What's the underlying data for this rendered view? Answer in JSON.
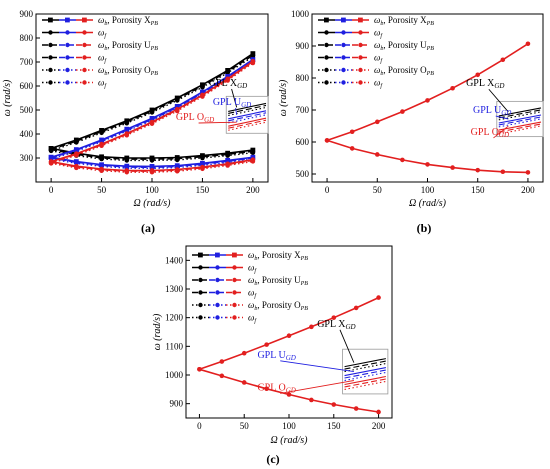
{
  "colors": {
    "black": "#000000",
    "blue": "#1f1fe0",
    "red": "#e21f1f",
    "gray": "#9a9a9a"
  },
  "chart_data": [
    {
      "panel_label": "(a)",
      "type": "line",
      "xlabel": "Ω (rad/s)",
      "ylabel": "ω (rad/s)",
      "xlim": [
        -15,
        215
      ],
      "ylim": [
        200,
        900
      ],
      "xticks": [
        0,
        50,
        100,
        150,
        200
      ],
      "yticks": [
        300,
        400,
        500,
        600,
        700,
        800,
        900
      ],
      "grid": false,
      "legend_position": "top-left",
      "legend": [
        {
          "sym": "ω",
          "sub": "b",
          "rest": ", Porosity X",
          "rsub": "PB",
          "style": "solid"
        },
        {
          "sym": "ω",
          "sub": "f",
          "rest": "",
          "rsub": "",
          "style": "solid"
        },
        {
          "sym": "ω",
          "sub": "b",
          "rest": ", Porosity U",
          "rsub": "PB",
          "style": "dash"
        },
        {
          "sym": "ω",
          "sub": "f",
          "rest": "",
          "rsub": "",
          "style": "dash"
        },
        {
          "sym": "ω",
          "sub": "b",
          "rest": ", Porosity O",
          "rsub": "PB",
          "style": "dot"
        },
        {
          "sym": "ω",
          "sub": "f",
          "rest": "",
          "rsub": "",
          "style": "dot"
        }
      ],
      "annotations": [
        {
          "text": "GPL X",
          "sub": "GD",
          "color": "black"
        },
        {
          "text": "GPL U",
          "sub": "GD",
          "color": "blue"
        },
        {
          "text": "GPL O",
          "sub": "GD",
          "color": "red"
        }
      ],
      "x": [
        0,
        25,
        50,
        75,
        100,
        125,
        150,
        175,
        200
      ],
      "series": [
        {
          "group": "X",
          "color": "black",
          "style": "solid",
          "values": [
            340,
            375,
            415,
            455,
            500,
            550,
            605,
            665,
            735
          ]
        },
        {
          "group": "X",
          "color": "black",
          "style": "solid",
          "values": [
            340,
            320,
            305,
            300,
            300,
            302,
            310,
            320,
            333
          ]
        },
        {
          "group": "X",
          "color": "black",
          "style": "dash",
          "values": [
            335,
            370,
            410,
            450,
            495,
            545,
            600,
            660,
            728
          ]
        },
        {
          "group": "X",
          "color": "black",
          "style": "dash",
          "values": [
            335,
            315,
            300,
            295,
            295,
            297,
            305,
            315,
            328
          ]
        },
        {
          "group": "X",
          "color": "black",
          "style": "dot",
          "values": [
            330,
            365,
            405,
            445,
            490,
            540,
            595,
            655,
            722
          ]
        },
        {
          "group": "X",
          "color": "black",
          "style": "dot",
          "values": [
            330,
            310,
            296,
            290,
            290,
            292,
            300,
            310,
            322
          ]
        },
        {
          "group": "U",
          "color": "blue",
          "style": "solid",
          "values": [
            303,
            335,
            375,
            420,
            465,
            515,
            575,
            640,
            710
          ]
        },
        {
          "group": "U",
          "color": "blue",
          "style": "solid",
          "values": [
            303,
            285,
            272,
            266,
            265,
            268,
            278,
            290,
            303
          ]
        },
        {
          "group": "U",
          "color": "blue",
          "style": "dash",
          "values": [
            300,
            332,
            372,
            416,
            461,
            511,
            571,
            636,
            706
          ]
        },
        {
          "group": "U",
          "color": "blue",
          "style": "dash",
          "values": [
            300,
            282,
            269,
            262,
            261,
            264,
            274,
            286,
            300
          ]
        },
        {
          "group": "U",
          "color": "blue",
          "style": "dot",
          "values": [
            296,
            328,
            368,
            412,
            457,
            507,
            567,
            632,
            702
          ]
        },
        {
          "group": "U",
          "color": "blue",
          "style": "dot",
          "values": [
            296,
            278,
            265,
            258,
            257,
            260,
            270,
            282,
            296
          ]
        },
        {
          "group": "O",
          "color": "red",
          "style": "solid",
          "values": [
            285,
            318,
            358,
            402,
            450,
            503,
            563,
            630,
            703
          ]
        },
        {
          "group": "O",
          "color": "red",
          "style": "solid",
          "values": [
            285,
            266,
            254,
            248,
            248,
            252,
            262,
            276,
            293
          ]
        },
        {
          "group": "O",
          "color": "red",
          "style": "dash",
          "values": [
            282,
            315,
            355,
            399,
            447,
            500,
            560,
            627,
            700
          ]
        },
        {
          "group": "O",
          "color": "red",
          "style": "dash",
          "values": [
            282,
            263,
            251,
            245,
            245,
            249,
            259,
            273,
            290
          ]
        },
        {
          "group": "O",
          "color": "red",
          "style": "dot",
          "values": [
            278,
            311,
            351,
            395,
            443,
            496,
            556,
            623,
            696
          ]
        },
        {
          "group": "O",
          "color": "red",
          "style": "dot",
          "values": [
            278,
            259,
            247,
            241,
            241,
            245,
            255,
            269,
            286
          ]
        }
      ]
    },
    {
      "panel_label": "(b)",
      "type": "line",
      "xlabel": "Ω (rad/s)",
      "ylabel": "ω (rad/s)",
      "xlim": [
        -15,
        215
      ],
      "ylim": [
        475,
        1000
      ],
      "xticks": [
        0,
        50,
        100,
        150,
        200
      ],
      "yticks": [
        500,
        600,
        700,
        800,
        900,
        1000
      ],
      "grid": false,
      "legend_position": "top-left",
      "legend": [
        {
          "sym": "ω",
          "sub": "b",
          "rest": ", Porosity X",
          "rsub": "PB",
          "style": "solid"
        },
        {
          "sym": "ω",
          "sub": "f",
          "rest": "",
          "rsub": "",
          "style": "solid"
        },
        {
          "sym": "ω",
          "sub": "b",
          "rest": ", Porosity U",
          "rsub": "PB",
          "style": "dash"
        },
        {
          "sym": "ω",
          "sub": "f",
          "rest": "",
          "rsub": "",
          "style": "dash"
        },
        {
          "sym": "ω",
          "sub": "b",
          "rest": ", Porosity O",
          "rsub": "PB",
          "style": "dot"
        },
        {
          "sym": "ω",
          "sub": "f",
          "rest": "",
          "rsub": "",
          "style": "dot"
        }
      ],
      "annotations": [
        {
          "text": "GPL X",
          "sub": "GD",
          "color": "black"
        },
        {
          "text": "GPL U",
          "sub": "GD",
          "color": "blue"
        },
        {
          "text": "GPL O",
          "sub": "GD",
          "color": "red"
        }
      ],
      "x": [
        0,
        25,
        50,
        75,
        100,
        125,
        150,
        175,
        200
      ],
      "series": [
        {
          "group": "all",
          "color": "red",
          "style": "solid",
          "values": [
            605,
            632,
            663,
            695,
            730,
            768,
            810,
            857,
            907
          ]
        },
        {
          "group": "all",
          "color": "red",
          "style": "solid",
          "values": [
            605,
            580,
            561,
            544,
            530,
            520,
            512,
            507,
            505
          ]
        }
      ]
    },
    {
      "panel_label": "(c)",
      "type": "line",
      "xlabel": "Ω (rad/s)",
      "ylabel": "ω (rad/s)",
      "xlim": [
        -15,
        215
      ],
      "ylim": [
        850,
        1450
      ],
      "xticks": [
        0,
        50,
        100,
        150,
        200
      ],
      "yticks": [
        900,
        1000,
        1100,
        1200,
        1300,
        1400
      ],
      "grid": false,
      "legend_position": "top-left",
      "legend": [
        {
          "sym": "ω",
          "sub": "b",
          "rest": ", Porosity X",
          "rsub": "PB",
          "style": "solid"
        },
        {
          "sym": "ω",
          "sub": "f",
          "rest": "",
          "rsub": "",
          "style": "solid"
        },
        {
          "sym": "ω",
          "sub": "b",
          "rest": ", Porosity U",
          "rsub": "PB",
          "style": "dash"
        },
        {
          "sym": "ω",
          "sub": "f",
          "rest": "",
          "rsub": "",
          "style": "dash"
        },
        {
          "sym": "ω",
          "sub": "b",
          "rest": ", Porosity O",
          "rsub": "PB",
          "style": "dot"
        },
        {
          "sym": "ω",
          "sub": "f",
          "rest": "",
          "rsub": "",
          "style": "dot"
        }
      ],
      "annotations": [
        {
          "text": "GPL X",
          "sub": "GD",
          "color": "black"
        },
        {
          "text": "GPL U",
          "sub": "GD",
          "color": "blue"
        },
        {
          "text": "GPL O",
          "sub": "GD",
          "color": "red"
        }
      ],
      "x": [
        0,
        25,
        50,
        75,
        100,
        125,
        150,
        175,
        200
      ],
      "series": [
        {
          "group": "all",
          "color": "red",
          "style": "solid",
          "values": [
            1020,
            1047,
            1076,
            1106,
            1137,
            1168,
            1200,
            1234,
            1270
          ]
        },
        {
          "group": "all",
          "color": "red",
          "style": "solid",
          "values": [
            1020,
            997,
            974,
            952,
            932,
            913,
            897,
            883,
            871
          ]
        }
      ]
    }
  ]
}
